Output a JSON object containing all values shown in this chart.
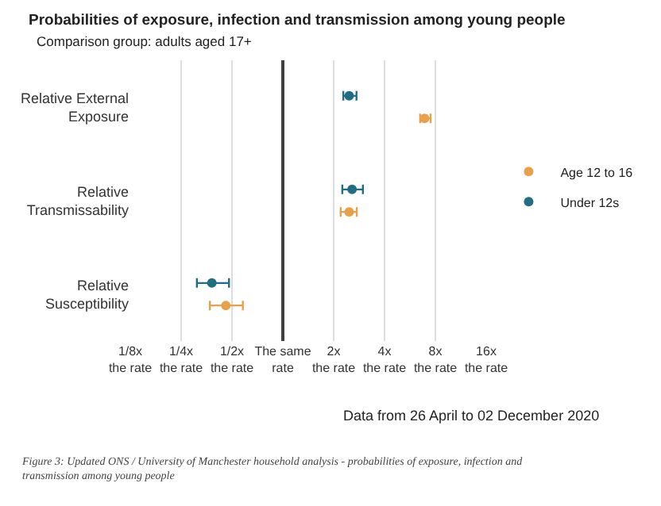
{
  "chart_data": {
    "type": "scatter",
    "title": "Probabilities of exposure, infection and transmission among young people",
    "subtitle": "Comparison group: adults aged 17+",
    "orientation": "horizontal",
    "log": "x",
    "grid": "x",
    "legend": "right",
    "marker": "circle",
    "categories": [
      "Relative External\nExposure",
      "Relative\nTransmissability",
      "Relative\nSusceptibility"
    ],
    "series": [
      {
        "name": "Age 12 to 16",
        "color": "#e8a04a",
        "values": [
          6.9,
          2.47,
          0.46
        ],
        "errors": [
          [
            6.5,
            7.5
          ],
          [
            2.2,
            2.74
          ],
          [
            0.37,
            0.58
          ]
        ]
      },
      {
        "name": "Under 12s",
        "color": "#1f6e84",
        "values": [
          2.47,
          2.57,
          0.38
        ],
        "errors": [
          [
            2.28,
            2.73
          ],
          [
            2.25,
            2.98
          ],
          [
            0.31,
            0.48
          ]
        ]
      }
    ],
    "xlim": [
      0.125,
      16
    ],
    "xticks": [
      {
        "value": 0.125,
        "label": "1/8x\nthe rate"
      },
      {
        "value": 0.25,
        "label": "1/4x\nthe rate"
      },
      {
        "value": 0.5,
        "label": "1/2x\nthe rate"
      },
      {
        "value": 1,
        "label": "The same\nrate"
      },
      {
        "value": 2,
        "label": "2x\nthe rate"
      },
      {
        "value": 4,
        "label": "4x\nthe rate"
      },
      {
        "value": 8,
        "label": "8x\nthe rate"
      },
      {
        "value": 16,
        "label": "16x\nthe rate"
      }
    ],
    "ref_lines": [
      {
        "axis": "x",
        "value": 1,
        "color": "#404040"
      }
    ],
    "annotations": [
      "Data from 26 April to 02 December 2020",
      "Figure 3: Updated ONS / University of Manchester household analysis - probabilities of exposure, infection and transmission among young people"
    ]
  }
}
